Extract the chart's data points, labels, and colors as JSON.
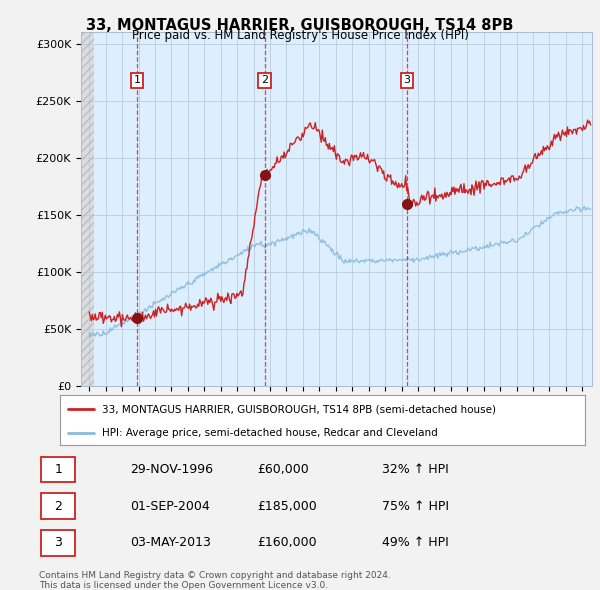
{
  "title1": "33, MONTAGUS HARRIER, GUISBOROUGH, TS14 8PB",
  "title2": "Price paid vs. HM Land Registry's House Price Index (HPI)",
  "ylabel_ticks": [
    "£0",
    "£50K",
    "£100K",
    "£150K",
    "£200K",
    "£250K",
    "£300K"
  ],
  "ytick_vals": [
    0,
    50000,
    100000,
    150000,
    200000,
    250000,
    300000
  ],
  "ylim": [
    0,
    310000
  ],
  "xlim_start": 1993.5,
  "xlim_end": 2024.6,
  "sale_dates": [
    1996.91,
    2004.67,
    2013.34
  ],
  "sale_prices": [
    60000,
    185000,
    160000
  ],
  "sale_labels": [
    "1",
    "2",
    "3"
  ],
  "red_color": "#cc2222",
  "blue_color": "#88bbdd",
  "plot_bg_color": "#ddeeff",
  "legend_label_red": "33, MONTAGUS HARRIER, GUISBOROUGH, TS14 8PB (semi-detached house)",
  "legend_label_blue": "HPI: Average price, semi-detached house, Redcar and Cleveland",
  "table_rows": [
    [
      "1",
      "29-NOV-1996",
      "£60,000",
      "32% ↑ HPI"
    ],
    [
      "2",
      "01-SEP-2004",
      "£185,000",
      "75% ↑ HPI"
    ],
    [
      "3",
      "03-MAY-2013",
      "£160,000",
      "49% ↑ HPI"
    ]
  ],
  "footnote1": "Contains HM Land Registry data © Crown copyright and database right 2024.",
  "footnote2": "This data is licensed under the Open Government Licence v3.0.",
  "background_color": "#f2f2f2"
}
